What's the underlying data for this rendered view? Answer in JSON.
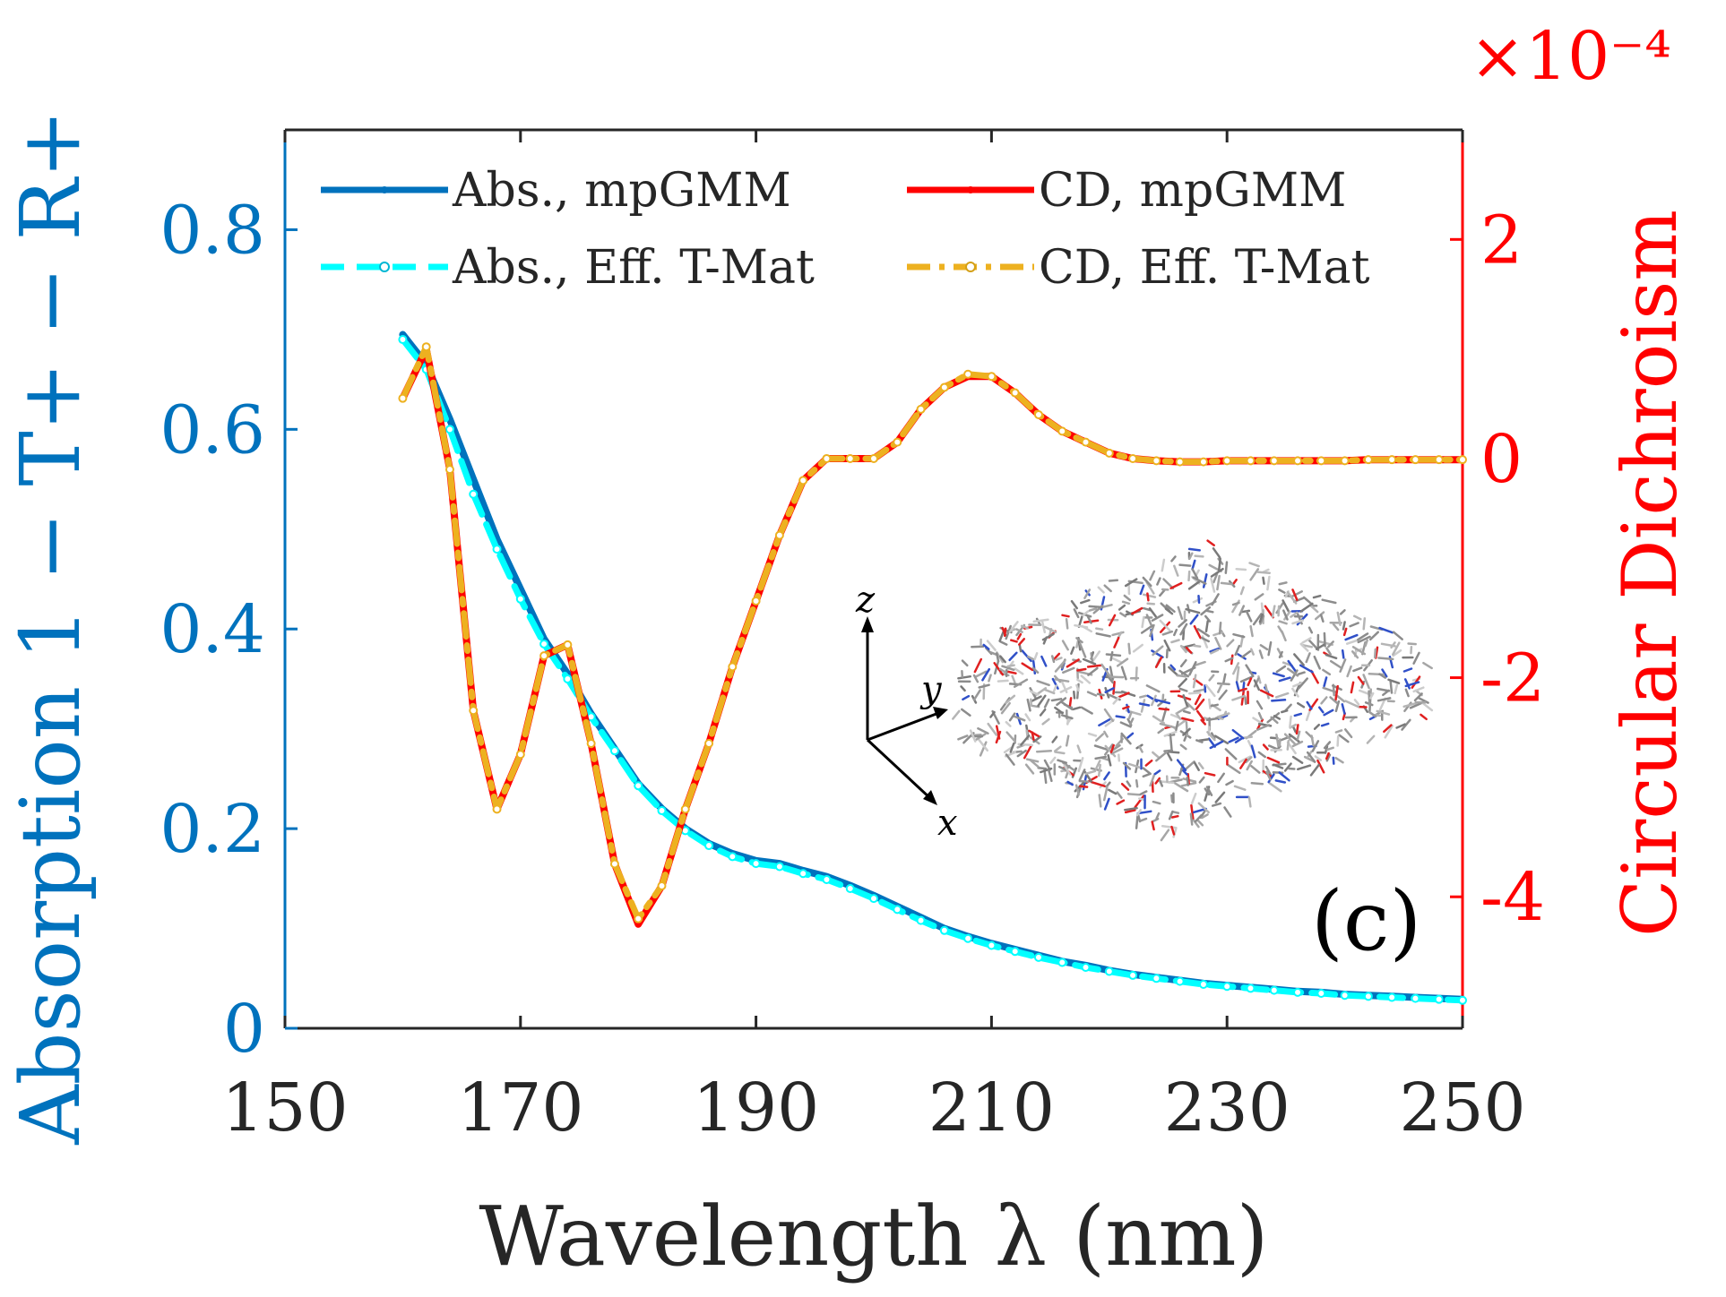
{
  "colors": {
    "abs_mpgmm": "#0072BD",
    "abs_eff": "#00FFFF",
    "cd_mpgmm": "#FF0000",
    "cd_eff": "#EDB120",
    "axis_text": "#262626",
    "left_axis": "#0072BD",
    "right_axis": "#FF0000"
  },
  "chart_data": {
    "type": "line",
    "xlabel": "Wavelength λ (nm)",
    "ylabel_left": "Absorption 1 − T+ − R+",
    "ylabel_right": "Circular Dichroism",
    "right_axis_multiplier": "×10⁻⁴",
    "panel_label": "(c)",
    "xlim": [
      150,
      250
    ],
    "ylim_left": [
      0,
      0.9
    ],
    "ylim_right": [
      -5.2,
      3.0
    ],
    "x_ticks": [
      "150",
      "170",
      "190",
      "210",
      "230",
      "250"
    ],
    "y_left_ticks": [
      "0",
      "0.2",
      "0.4",
      "0.6",
      "0.8"
    ],
    "y_right_ticks": [
      "-4",
      "-2",
      "0",
      "2"
    ],
    "legend": {
      "placement": "top",
      "entries": [
        "Abs., mpGMM",
        "CD, mpGMM",
        "Abs., Eff.  T-Mat",
        "CD, Eff.  T-Mat"
      ]
    },
    "inset": {
      "description_label": "molecular structure",
      "axis_labels": [
        "z",
        "y",
        "x"
      ]
    },
    "x": [
      160,
      162,
      164,
      166,
      168,
      170,
      172,
      174,
      176,
      178,
      180,
      182,
      184,
      186,
      188,
      190,
      192,
      194,
      196,
      198,
      200,
      202,
      204,
      206,
      208,
      210,
      212,
      214,
      216,
      218,
      220,
      222,
      224,
      226,
      228,
      230,
      232,
      234,
      236,
      238,
      240,
      242,
      244,
      246,
      248,
      250
    ],
    "series": [
      {
        "name": "Abs., mpGMM",
        "axis": "left",
        "values": [
          0.695,
          0.665,
          0.61,
          0.55,
          0.49,
          0.44,
          0.39,
          0.355,
          0.315,
          0.28,
          0.245,
          0.22,
          0.2,
          0.185,
          0.175,
          0.168,
          0.165,
          0.158,
          0.152,
          0.143,
          0.133,
          0.122,
          0.111,
          0.1,
          0.092,
          0.085,
          0.079,
          0.073,
          0.067,
          0.063,
          0.058,
          0.054,
          0.051,
          0.048,
          0.045,
          0.043,
          0.041,
          0.039,
          0.037,
          0.036,
          0.034,
          0.033,
          0.032,
          0.031,
          0.03,
          0.029
        ]
      },
      {
        "name": "Abs., Eff.  T-Mat",
        "axis": "left",
        "values": [
          0.69,
          0.66,
          0.6,
          0.535,
          0.48,
          0.43,
          0.385,
          0.35,
          0.312,
          0.278,
          0.243,
          0.218,
          0.198,
          0.183,
          0.172,
          0.165,
          0.162,
          0.155,
          0.149,
          0.14,
          0.13,
          0.119,
          0.108,
          0.098,
          0.09,
          0.083,
          0.077,
          0.071,
          0.066,
          0.061,
          0.057,
          0.053,
          0.05,
          0.047,
          0.044,
          0.042,
          0.04,
          0.038,
          0.036,
          0.035,
          0.033,
          0.032,
          0.031,
          0.03,
          0.029,
          0.028
        ]
      },
      {
        "name": "CD, mpGMM",
        "axis": "right",
        "values": [
          0.55,
          1.0,
          -0.1,
          -2.3,
          -3.2,
          -2.7,
          -1.8,
          -1.7,
          -2.6,
          -3.7,
          -4.25,
          -3.9,
          -3.2,
          -2.6,
          -1.9,
          -1.3,
          -0.7,
          -0.2,
          0.0,
          0.0,
          0.0,
          0.15,
          0.45,
          0.65,
          0.75,
          0.75,
          0.6,
          0.4,
          0.25,
          0.15,
          0.05,
          0.0,
          -0.02,
          -0.03,
          -0.03,
          -0.02,
          -0.02,
          -0.02,
          -0.02,
          -0.02,
          -0.02,
          -0.01,
          -0.01,
          -0.01,
          -0.01,
          -0.01
        ]
      },
      {
        "name": "CD, Eff.  T-Mat",
        "axis": "right",
        "values": [
          0.55,
          1.02,
          -0.1,
          -2.3,
          -3.2,
          -2.7,
          -1.8,
          -1.7,
          -2.6,
          -3.7,
          -4.2,
          -3.9,
          -3.2,
          -2.6,
          -1.9,
          -1.3,
          -0.7,
          -0.2,
          0.0,
          0.0,
          0.0,
          0.15,
          0.45,
          0.65,
          0.77,
          0.75,
          0.6,
          0.4,
          0.25,
          0.15,
          0.05,
          0.0,
          -0.02,
          -0.03,
          -0.03,
          -0.02,
          -0.02,
          -0.02,
          -0.02,
          -0.02,
          -0.02,
          -0.01,
          -0.01,
          -0.01,
          -0.01,
          -0.01
        ]
      }
    ]
  }
}
